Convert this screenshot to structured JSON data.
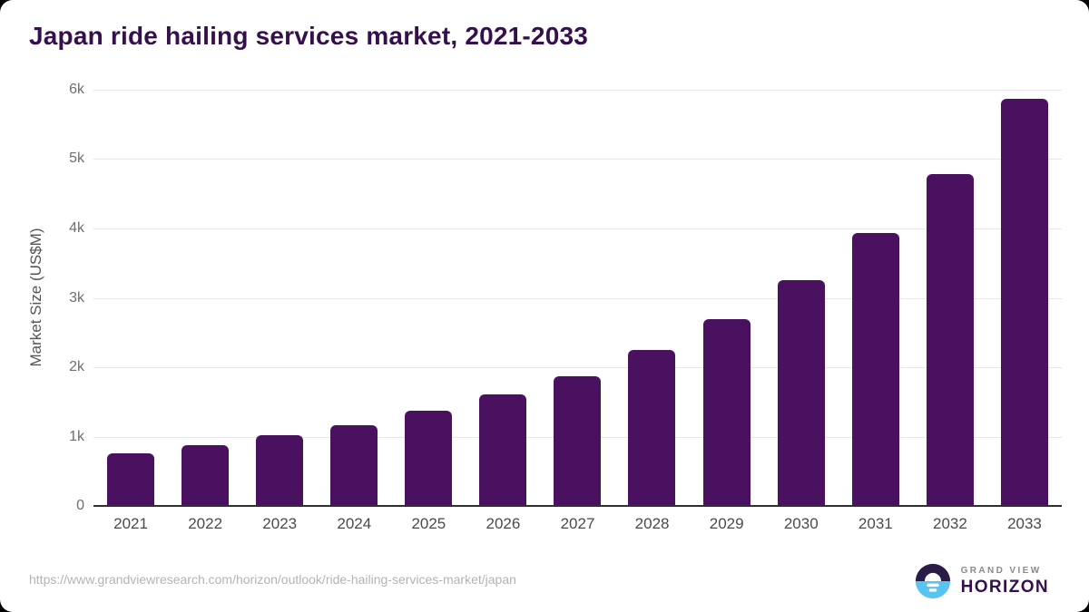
{
  "chart_data": {
    "type": "bar",
    "title": "Japan ride hailing services market, 2021-2033",
    "xlabel": "",
    "ylabel": "Market Size (US$M)",
    "ylim": [
      0,
      6000
    ],
    "grid": true,
    "legend": "none",
    "bar_color": "#4a1161",
    "categories": [
      "2021",
      "2022",
      "2023",
      "2024",
      "2025",
      "2026",
      "2027",
      "2028",
      "2029",
      "2030",
      "2031",
      "2032",
      "2033"
    ],
    "values": [
      760,
      880,
      1020,
      1170,
      1370,
      1610,
      1870,
      2250,
      2690,
      3250,
      3930,
      4790,
      5870
    ],
    "yticks": [
      {
        "value": 0,
        "label": "0"
      },
      {
        "value": 1000,
        "label": "1k"
      },
      {
        "value": 2000,
        "label": "2k"
      },
      {
        "value": 3000,
        "label": "3k"
      },
      {
        "value": 4000,
        "label": "4k"
      },
      {
        "value": 5000,
        "label": "5k"
      },
      {
        "value": 6000,
        "label": "6k"
      }
    ]
  },
  "footer": {
    "source_url": "https://www.grandviewresearch.com/horizon/outlook/ride-hailing-services-market/japan",
    "logo": {
      "top_text": "GRAND VIEW",
      "bottom_text": "HORIZON"
    }
  },
  "colors": {
    "bar": "#4a1161",
    "title_text": "#36104d",
    "logo_navy": "#2b1b47",
    "logo_blue": "#58c4f0",
    "gridline": "#e7e7e7",
    "axis_line": "#2f2f2f",
    "background": "#ffffff"
  }
}
